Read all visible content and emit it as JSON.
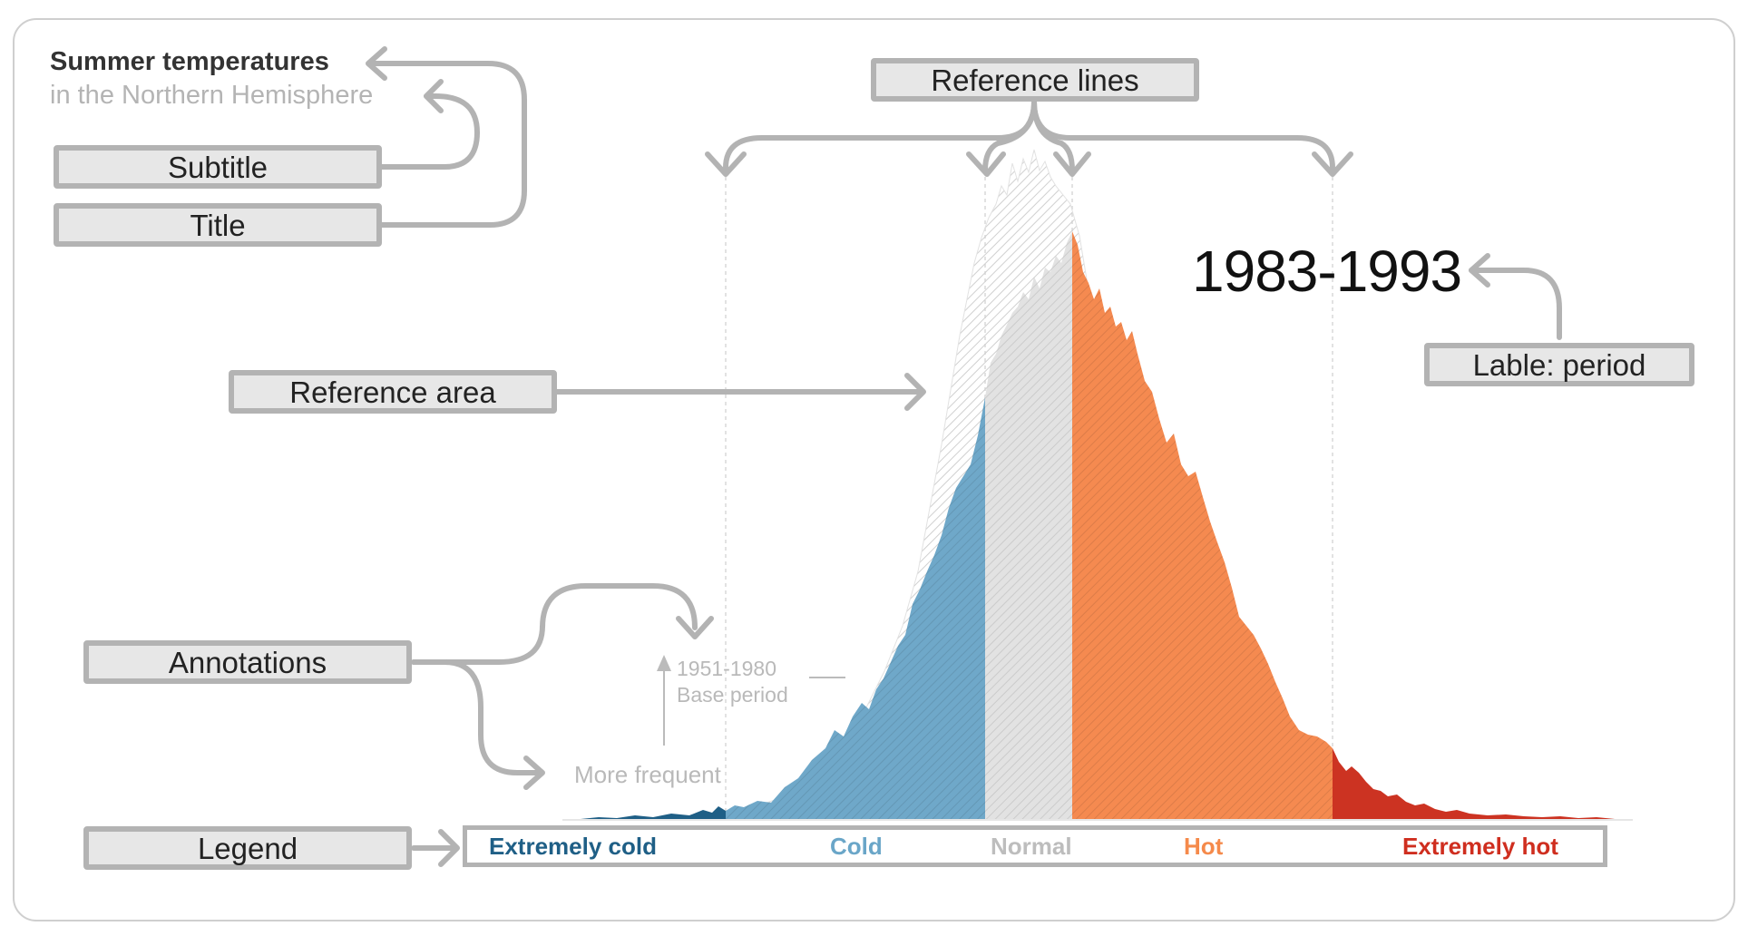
{
  "chart": {
    "title": "Summer temperatures",
    "subtitle": "in the Northern Hemisphere",
    "period_label": "1983-1993",
    "annotation_base_years": "1951-1980",
    "annotation_base_label": "Base period",
    "annotation_frequency": "More frequent"
  },
  "callouts": {
    "subtitle": "Subtitle",
    "title": "Title",
    "reference_lines": "Reference lines",
    "label_period": "Lable: period",
    "reference_area": "Reference area",
    "annotations": "Annotations",
    "legend": "Legend"
  },
  "legend": {
    "items": [
      {
        "label": "Extremely cold",
        "color": "#1f5f86"
      },
      {
        "label": "Cold",
        "color": "#6aa6c8"
      },
      {
        "label": "Normal",
        "color": "#bdbdbd"
      },
      {
        "label": "Hot",
        "color": "#f58a4b"
      },
      {
        "label": "Extremely hot",
        "color": "#cf2e1f"
      }
    ]
  },
  "colors": {
    "extremely_cold": "#1f5f86",
    "cold": "#6aa6c8",
    "normal": "#dcdcdc",
    "hot": "#f5894e",
    "extremely_hot": "#cc3322",
    "callout_fill": "#e7e7e7",
    "callout_border": "#b3b3b3"
  }
}
